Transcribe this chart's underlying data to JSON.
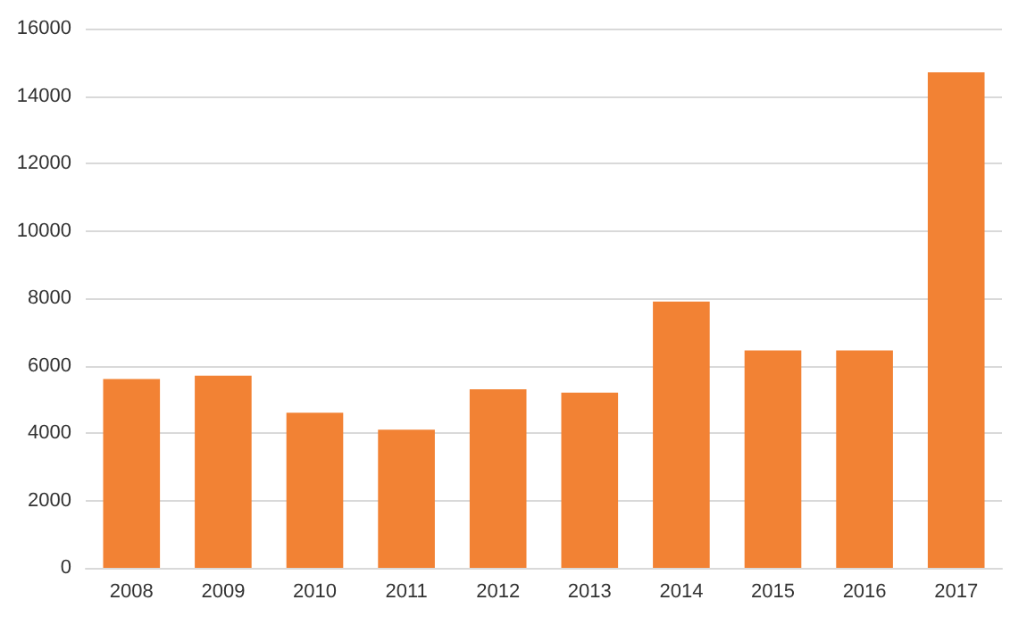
{
  "chart_data": {
    "type": "bar",
    "categories": [
      "2008",
      "2009",
      "2010",
      "2011",
      "2012",
      "2013",
      "2014",
      "2015",
      "2016",
      "2017"
    ],
    "values": [
      5600,
      5700,
      4600,
      4100,
      5300,
      5200,
      7900,
      6450,
      6450,
      14700
    ],
    "color": "#f28234",
    "ylim": [
      0,
      16000
    ],
    "yticks": [
      0,
      2000,
      4000,
      6000,
      8000,
      10000,
      12000,
      14000,
      16000
    ],
    "grid": "y"
  }
}
